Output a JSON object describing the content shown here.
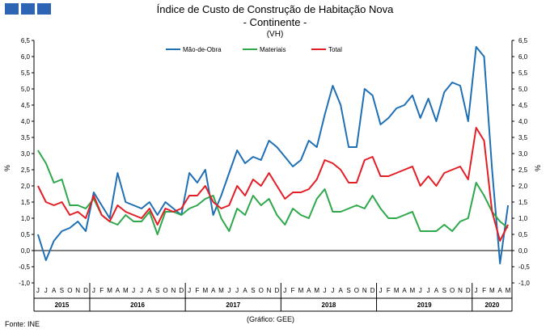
{
  "brand_colors": [
    "#2e64b4",
    "#2e64b4",
    "#2e64b4"
  ],
  "source_note": "Fonte: INE",
  "credit_note": "(Gráfico: GEE)",
  "chart_data": {
    "type": "line",
    "title": "Índice de Custo de Construção de Habitação Nova",
    "subtitle": "- Continente -",
    "unit": "(VH)",
    "ylabel": "%",
    "ylabel_right": "%",
    "ylim": [
      -1.0,
      6.5
    ],
    "y_ticks": [
      "-1,0",
      "-0,5",
      "0,0",
      "0,5",
      "1,0",
      "1,5",
      "2,0",
      "2,5",
      "3,0",
      "3,5",
      "4,0",
      "4,5",
      "5,0",
      "5,5",
      "6,0",
      "6,5"
    ],
    "grid": false,
    "legend_position": "top-center",
    "month_labels": [
      "J",
      "J",
      "A",
      "S",
      "O",
      "N",
      "D",
      "J",
      "F",
      "M",
      "A",
      "M",
      "J",
      "J",
      "A",
      "S",
      "O",
      "N",
      "D",
      "J",
      "F",
      "M",
      "A",
      "M",
      "J",
      "J",
      "A",
      "S",
      "O",
      "N",
      "D",
      "J",
      "F",
      "M",
      "A",
      "M",
      "J",
      "J",
      "A",
      "S",
      "O",
      "N",
      "D",
      "J",
      "F",
      "M",
      "A",
      "M",
      "J",
      "J",
      "A",
      "S",
      "O",
      "N",
      "D",
      "J",
      "F",
      "M",
      "A",
      "M"
    ],
    "years": [
      {
        "label": "2015",
        "start": 0,
        "count": 7
      },
      {
        "label": "2016",
        "start": 7,
        "count": 12
      },
      {
        "label": "2017",
        "start": 19,
        "count": 12
      },
      {
        "label": "2018",
        "start": 31,
        "count": 12
      },
      {
        "label": "2019",
        "start": 43,
        "count": 12
      },
      {
        "label": "2020",
        "start": 55,
        "count": 5
      }
    ],
    "series": [
      {
        "name": "Mão-de-Obra",
        "color": "#1f6fb5",
        "values": [
          0.5,
          -0.3,
          0.3,
          0.6,
          0.7,
          0.9,
          0.6,
          1.8,
          1.4,
          1.0,
          2.4,
          1.5,
          1.4,
          1.3,
          1.5,
          1.1,
          1.5,
          1.3,
          1.1,
          2.4,
          2.1,
          2.5,
          1.1,
          1.7,
          2.4,
          3.1,
          2.7,
          2.9,
          2.8,
          3.4,
          3.2,
          2.9,
          2.6,
          2.8,
          3.4,
          3.2,
          4.2,
          5.1,
          4.5,
          3.2,
          3.2,
          5.0,
          4.8,
          3.9,
          4.1,
          4.4,
          4.5,
          4.8,
          4.1,
          4.7,
          4.0,
          4.9,
          5.2,
          5.1,
          4.0,
          6.3,
          6.0,
          2.5,
          -0.4,
          1.4
        ]
      },
      {
        "name": "Materiais",
        "color": "#2ea84a",
        "values": [
          3.1,
          2.7,
          2.1,
          2.2,
          1.4,
          1.4,
          1.3,
          1.6,
          1.1,
          0.9,
          0.8,
          1.1,
          0.9,
          0.9,
          1.2,
          0.5,
          1.2,
          1.2,
          1.1,
          1.3,
          1.4,
          1.6,
          1.7,
          1.0,
          0.6,
          1.3,
          1.1,
          1.7,
          1.4,
          1.6,
          1.1,
          0.8,
          1.3,
          1.1,
          1.0,
          1.6,
          1.9,
          1.2,
          1.2,
          1.3,
          1.4,
          1.3,
          1.7,
          1.3,
          1.0,
          1.0,
          1.1,
          1.2,
          0.6,
          0.6,
          0.6,
          0.8,
          0.6,
          0.9,
          1.0,
          2.1,
          1.7,
          1.2,
          0.9,
          0.7
        ]
      },
      {
        "name": "Total",
        "color": "#e41e26",
        "values": [
          2.0,
          1.5,
          1.4,
          1.5,
          1.1,
          1.2,
          1.0,
          1.7,
          1.1,
          0.9,
          1.4,
          1.2,
          1.1,
          1.0,
          1.3,
          0.8,
          1.3,
          1.2,
          1.3,
          1.7,
          1.7,
          2.0,
          1.5,
          1.3,
          1.4,
          2.0,
          1.7,
          2.2,
          2.0,
          2.4,
          2.0,
          1.6,
          1.8,
          1.8,
          1.9,
          2.2,
          2.8,
          2.7,
          2.5,
          2.1,
          2.1,
          2.8,
          2.9,
          2.3,
          2.3,
          2.4,
          2.5,
          2.6,
          2.0,
          2.3,
          2.0,
          2.4,
          2.5,
          2.6,
          2.2,
          3.8,
          3.4,
          1.2,
          0.3,
          0.8
        ]
      }
    ]
  }
}
